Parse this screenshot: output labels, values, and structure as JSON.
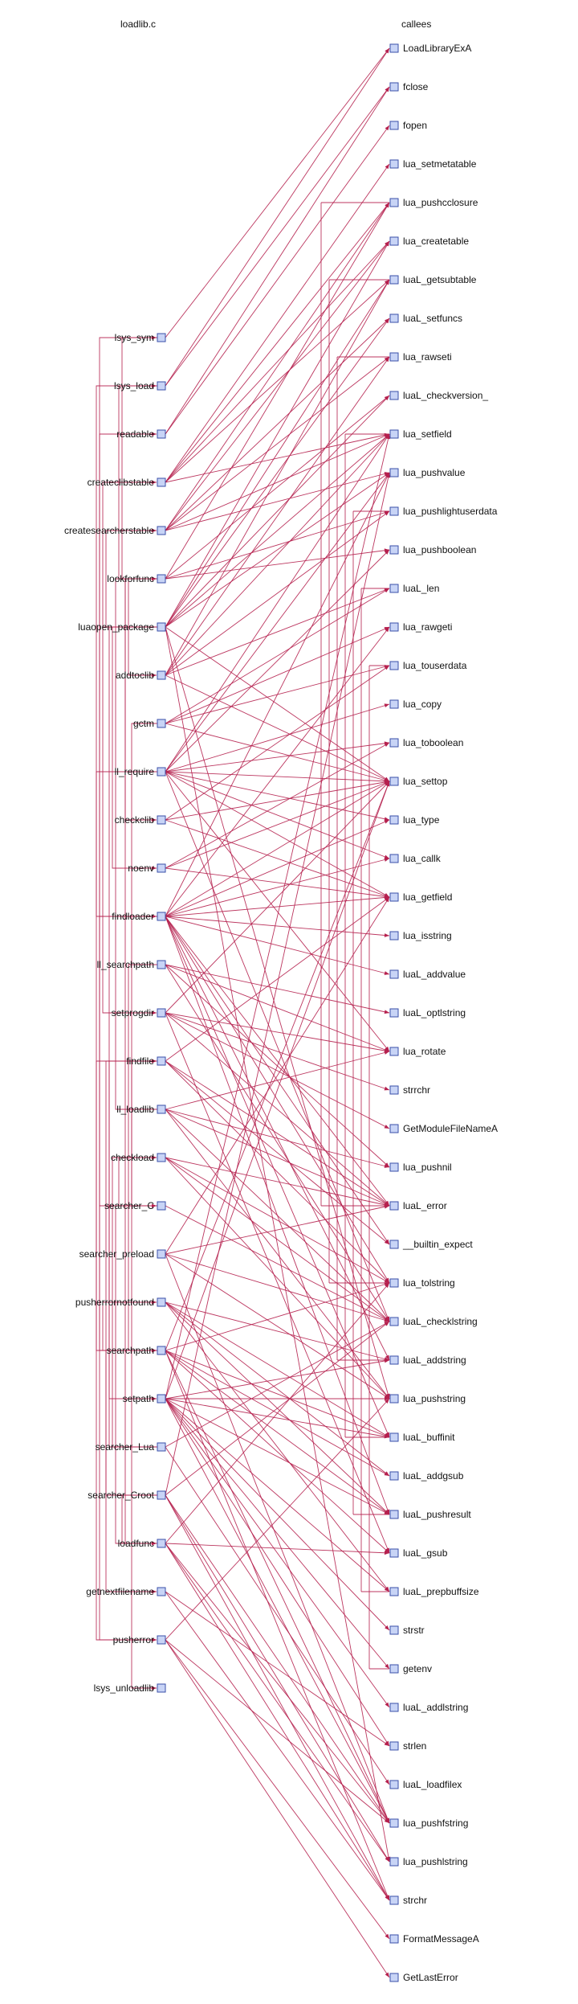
{
  "headers": {
    "left": "loadlib.c",
    "right": "callees"
  },
  "colors": {
    "edge": "#b5204e",
    "node_fill": "#c8d4f6",
    "node_stroke": "#3a4fa8"
  },
  "callers": [
    "lsys_sym",
    "lsys_load",
    "readable",
    "createclibstable",
    "createsearcherstable",
    "lookforfunc",
    "luaopen_package",
    "addtoclib",
    "gctm",
    "ll_require",
    "checkclib",
    "noenv",
    "findloader",
    "ll_searchpath",
    "setprogdir",
    "findfile",
    "ll_loadlib",
    "checkload",
    "searcher_C",
    "searcher_preload",
    "pusherrornotfound",
    "searchpath",
    "setpath",
    "searcher_Lua",
    "searcher_Croot",
    "loadfunc",
    "getnextfilename",
    "pusherror",
    "lsys_unloadlib"
  ],
  "callees": [
    "LoadLibraryExA",
    "fclose",
    "fopen",
    "lua_setmetatable",
    "lua_pushcclosure",
    "lua_createtable",
    "luaL_getsubtable",
    "luaL_setfuncs",
    "lua_rawseti",
    "luaL_checkversion_",
    "lua_setfield",
    "lua_pushvalue",
    "lua_pushlightuserdata",
    "lua_pushboolean",
    "luaL_len",
    "lua_rawgeti",
    "lua_touserdata",
    "lua_copy",
    "lua_toboolean",
    "lua_settop",
    "lua_type",
    "lua_callk",
    "lua_getfield",
    "lua_isstring",
    "luaL_addvalue",
    "luaL_optlstring",
    "lua_rotate",
    "strrchr",
    "GetModuleFileNameA",
    "lua_pushnil",
    "luaL_error",
    "__builtin_expect",
    "lua_tolstring",
    "luaL_checklstring",
    "luaL_addstring",
    "lua_pushstring",
    "luaL_buffinit",
    "luaL_addgsub",
    "luaL_pushresult",
    "luaL_gsub",
    "luaL_prepbuffsize",
    "strstr",
    "getenv",
    "luaL_addlstring",
    "strlen",
    "luaL_loadfilex",
    "lua_pushfstring",
    "lua_pushlstring",
    "strchr",
    "FormatMessageA",
    "GetLastError"
  ],
  "calls": [
    [
      "lsys_sym",
      "LoadLibraryExA"
    ],
    [
      "lsys_load",
      "LoadLibraryExA"
    ],
    [
      "lsys_load",
      "fclose"
    ],
    [
      "readable",
      "fclose"
    ],
    [
      "readable",
      "fopen"
    ],
    [
      "createclibstable",
      "lua_setmetatable"
    ],
    [
      "createclibstable",
      "lua_pushcclosure"
    ],
    [
      "createclibstable",
      "luaL_getsubtable"
    ],
    [
      "createclibstable",
      "lua_setfield"
    ],
    [
      "createclibstable",
      "lua_createtable"
    ],
    [
      "createsearcherstable",
      "lua_createtable"
    ],
    [
      "createsearcherstable",
      "lua_pushvalue"
    ],
    [
      "createsearcherstable",
      "lua_pushcclosure"
    ],
    [
      "createsearcherstable",
      "lua_rawseti"
    ],
    [
      "createsearcherstable",
      "lua_setfield"
    ],
    [
      "createsearcherstable",
      "luaL_setfuncs"
    ],
    [
      "lookforfunc",
      "lua_pushboolean"
    ],
    [
      "lookforfunc",
      "lua_pushcclosure"
    ],
    [
      "lookforfunc",
      "lua_pushlightuserdata"
    ],
    [
      "lookforfunc",
      "luaL_checkversion_"
    ],
    [
      "luaopen_package",
      "luaL_checkversion_"
    ],
    [
      "luaopen_package",
      "lua_createtable"
    ],
    [
      "luaopen_package",
      "luaL_setfuncs"
    ],
    [
      "luaopen_package",
      "lua_setfield"
    ],
    [
      "luaopen_package",
      "lua_pushvalue"
    ],
    [
      "luaopen_package",
      "luaL_getsubtable"
    ],
    [
      "luaopen_package",
      "lua_settop"
    ],
    [
      "luaopen_package",
      "lua_pushstring"
    ],
    [
      "luaopen_package",
      "lua_pushlstring"
    ],
    [
      "addtoclib",
      "luaL_getsubtable"
    ],
    [
      "addtoclib",
      "lua_pushlightuserdata"
    ],
    [
      "addtoclib",
      "lua_setfield"
    ],
    [
      "addtoclib",
      "luaL_len"
    ],
    [
      "addtoclib",
      "lua_rawseti"
    ],
    [
      "addtoclib",
      "lua_settop"
    ],
    [
      "gctm",
      "luaL_len"
    ],
    [
      "gctm",
      "lua_rawgeti"
    ],
    [
      "gctm",
      "lua_touserdata"
    ],
    [
      "gctm",
      "lua_settop"
    ],
    [
      "ll_require",
      "luaL_checklstring"
    ],
    [
      "ll_require",
      "lua_settop"
    ],
    [
      "ll_require",
      "lua_getfield"
    ],
    [
      "ll_require",
      "lua_toboolean"
    ],
    [
      "ll_require",
      "lua_pushvalue"
    ],
    [
      "ll_require",
      "lua_callk"
    ],
    [
      "ll_require",
      "lua_type"
    ],
    [
      "ll_require",
      "lua_setfield"
    ],
    [
      "ll_require",
      "lua_pushboolean"
    ],
    [
      "ll_require",
      "lua_copy"
    ],
    [
      "ll_require",
      "lua_rotate"
    ],
    [
      "checkclib",
      "lua_getfield"
    ],
    [
      "checkclib",
      "lua_touserdata"
    ],
    [
      "checkclib",
      "lua_settop"
    ],
    [
      "noenv",
      "lua_getfield"
    ],
    [
      "noenv",
      "lua_toboolean"
    ],
    [
      "noenv",
      "lua_settop"
    ],
    [
      "findloader",
      "lua_getfield"
    ],
    [
      "findloader",
      "lua_type"
    ],
    [
      "findloader",
      "luaL_error"
    ],
    [
      "findloader",
      "luaL_buffinit"
    ],
    [
      "findloader",
      "luaL_addvalue"
    ],
    [
      "findloader",
      "lua_rawgeti"
    ],
    [
      "findloader",
      "lua_pushvalue"
    ],
    [
      "findloader",
      "lua_callk"
    ],
    [
      "findloader",
      "lua_isstring"
    ],
    [
      "findloader",
      "lua_settop"
    ],
    [
      "findloader",
      "luaL_pushresult"
    ],
    [
      "findloader",
      "luaL_addstring"
    ],
    [
      "findloader",
      "__builtin_expect"
    ],
    [
      "findloader",
      "lua_tolstring"
    ],
    [
      "ll_searchpath",
      "luaL_checklstring"
    ],
    [
      "ll_searchpath",
      "luaL_optlstring"
    ],
    [
      "ll_searchpath",
      "lua_pushnil"
    ],
    [
      "ll_searchpath",
      "lua_rotate"
    ],
    [
      "setprogdir",
      "GetModuleFileNameA"
    ],
    [
      "setprogdir",
      "strrchr"
    ],
    [
      "setprogdir",
      "luaL_error"
    ],
    [
      "setprogdir",
      "luaL_gsub"
    ],
    [
      "setprogdir",
      "lua_rotate"
    ],
    [
      "setprogdir",
      "lua_settop"
    ],
    [
      "findfile",
      "lua_getfield"
    ],
    [
      "findfile",
      "lua_tolstring"
    ],
    [
      "findfile",
      "luaL_error"
    ],
    [
      "findfile",
      "__builtin_expect"
    ],
    [
      "ll_loadlib",
      "luaL_checklstring"
    ],
    [
      "ll_loadlib",
      "lua_pushnil"
    ],
    [
      "ll_loadlib",
      "lua_rotate"
    ],
    [
      "ll_loadlib",
      "lua_pushstring"
    ],
    [
      "ll_loadlib",
      "luaL_error"
    ],
    [
      "checkload",
      "lua_pushstring"
    ],
    [
      "checkload",
      "luaL_error"
    ],
    [
      "checkload",
      "lua_tolstring"
    ],
    [
      "checkload",
      "luaL_checklstring"
    ],
    [
      "searcher_C",
      "luaL_checklstring"
    ],
    [
      "searcher_preload",
      "luaL_checklstring"
    ],
    [
      "searcher_preload",
      "lua_getfield"
    ],
    [
      "searcher_preload",
      "lua_pushfstring"
    ],
    [
      "searcher_preload",
      "lua_pushstring"
    ],
    [
      "searcher_preload",
      "luaL_error"
    ],
    [
      "pusherrornotfound",
      "luaL_buffinit"
    ],
    [
      "pusherrornotfound",
      "luaL_addstring"
    ],
    [
      "pusherrornotfound",
      "luaL_addgsub"
    ],
    [
      "pusherrornotfound",
      "luaL_pushresult"
    ],
    [
      "pusherrornotfound",
      "luaL_prepbuffsize"
    ],
    [
      "searchpath",
      "strchr"
    ],
    [
      "searchpath",
      "luaL_buffinit"
    ],
    [
      "searchpath",
      "luaL_addgsub"
    ],
    [
      "searchpath",
      "luaL_pushresult"
    ],
    [
      "searchpath",
      "lua_tolstring"
    ],
    [
      "searchpath",
      "lua_pushfstring"
    ],
    [
      "searchpath",
      "luaL_gsub"
    ],
    [
      "searchpath",
      "lua_settop"
    ],
    [
      "setpath",
      "getenv"
    ],
    [
      "setpath",
      "lua_pushfstring"
    ],
    [
      "setpath",
      "lua_pushstring"
    ],
    [
      "setpath",
      "strstr"
    ],
    [
      "setpath",
      "luaL_buffinit"
    ],
    [
      "setpath",
      "luaL_addlstring"
    ],
    [
      "setpath",
      "luaL_addstring"
    ],
    [
      "setpath",
      "luaL_pushresult"
    ],
    [
      "setpath",
      "lua_setfield"
    ],
    [
      "setpath",
      "lua_settop"
    ],
    [
      "setpath",
      "strlen"
    ],
    [
      "setpath",
      "luaL_prepbuffsize"
    ],
    [
      "searcher_Lua",
      "luaL_checklstring"
    ],
    [
      "searcher_Lua",
      "luaL_loadfilex"
    ],
    [
      "searcher_Croot",
      "luaL_checklstring"
    ],
    [
      "searcher_Croot",
      "strchr"
    ],
    [
      "searcher_Croot",
      "lua_pushlstring"
    ],
    [
      "searcher_Croot",
      "lua_pushfstring"
    ],
    [
      "searcher_Croot",
      "lua_pushvalue"
    ],
    [
      "loadfunc",
      "strchr"
    ],
    [
      "loadfunc",
      "lua_pushlstring"
    ],
    [
      "loadfunc",
      "luaL_gsub"
    ],
    [
      "loadfunc",
      "lua_pushfstring"
    ],
    [
      "loadfunc",
      "lua_tolstring"
    ],
    [
      "getnextfilename",
      "strchr"
    ],
    [
      "getnextfilename",
      "strlen"
    ],
    [
      "pusherror",
      "GetLastError"
    ],
    [
      "pusherror",
      "FormatMessageA"
    ],
    [
      "pusherror",
      "lua_pushstring"
    ],
    [
      "pusherror",
      "lua_pushfstring"
    ]
  ],
  "internal_calls": [
    [
      "ll_require",
      "findloader"
    ],
    [
      "findloader",
      "searcher_C"
    ],
    [
      "luaopen_package",
      "createclibstable"
    ],
    [
      "luaopen_package",
      "createsearcherstable"
    ],
    [
      "luaopen_package",
      "setpath"
    ],
    [
      "luaopen_package",
      "noenv"
    ],
    [
      "ll_loadlib",
      "lookforfunc"
    ],
    [
      "lookforfunc",
      "lsys_load"
    ],
    [
      "lookforfunc",
      "lsys_sym"
    ],
    [
      "lookforfunc",
      "checkclib"
    ],
    [
      "lookforfunc",
      "addtoclib"
    ],
    [
      "searcher_C",
      "findfile"
    ],
    [
      "findfile",
      "searchpath"
    ],
    [
      "searchpath",
      "readable"
    ],
    [
      "searchpath",
      "pusherrornotfound"
    ],
    [
      "searchpath",
      "getnextfilename"
    ],
    [
      "searcher_Lua",
      "findfile"
    ],
    [
      "searcher_Lua",
      "checkload"
    ],
    [
      "searcher_C",
      "loadfunc"
    ],
    [
      "searcher_C",
      "checkload"
    ],
    [
      "searcher_Croot",
      "loadfunc"
    ],
    [
      "loadfunc",
      "lookforfunc"
    ],
    [
      "ll_searchpath",
      "searchpath"
    ],
    [
      "gctm",
      "lsys_unloadlib"
    ],
    [
      "lsys_load",
      "pusherror"
    ],
    [
      "lsys_sym",
      "pusherror"
    ],
    [
      "luaopen_package",
      "setprogdir"
    ],
    [
      "searcher_Croot",
      "findfile"
    ]
  ]
}
